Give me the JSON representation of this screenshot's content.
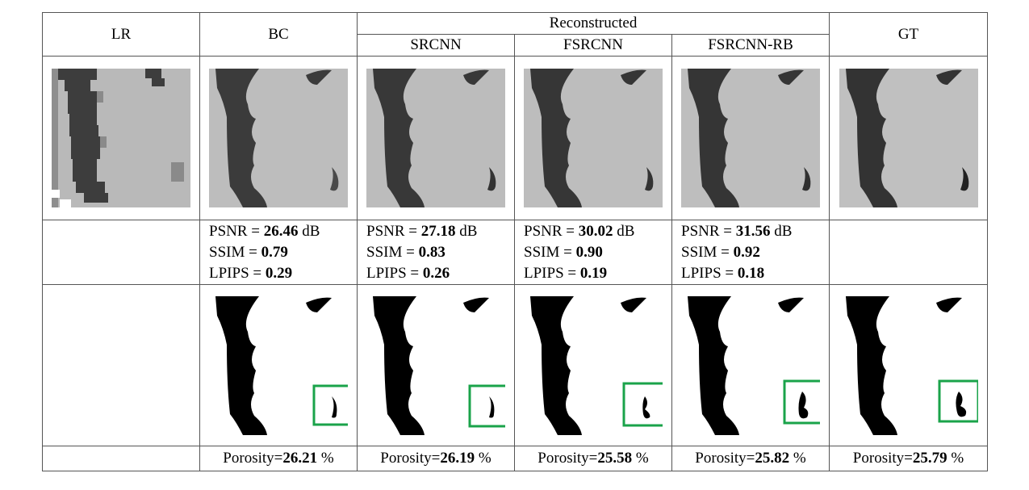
{
  "header": {
    "lr": "LR",
    "bc": "BC",
    "group": "Reconstructed",
    "srcnn": "SRCNN",
    "fsrcnn": "FSRCNN",
    "fsrcnn_rb": "FSRCNN-RB",
    "gt": "GT"
  },
  "metrics": [
    {
      "psnr_prefix": "PSNR = ",
      "psnr": "26.46",
      "psnr_unit": " dB",
      "ssim_prefix": "SSIM = ",
      "ssim": "0.79",
      "lpips_prefix": "LPIPS = ",
      "lpips": "0.29"
    },
    {
      "psnr_prefix": "PSNR = ",
      "psnr": "27.18",
      "psnr_unit": " dB",
      "ssim_prefix": "SSIM = ",
      "ssim": "0.83",
      "lpips_prefix": "LPIPS = ",
      "lpips": "0.26"
    },
    {
      "psnr_prefix": "PSNR = ",
      "psnr": "30.02",
      "psnr_unit": " dB",
      "ssim_prefix": "SSIM = ",
      "ssim": "0.90",
      "lpips_prefix": "LPIPS = ",
      "lpips": "0.19"
    },
    {
      "psnr_prefix": "PSNR = ",
      "psnr": "31.56",
      "psnr_unit": " dB",
      "ssim_prefix": "SSIM = ",
      "ssim": "0.92",
      "lpips_prefix": "LPIPS = ",
      "lpips": "0.18"
    }
  ],
  "porosity": [
    {
      "label": "Porosity=",
      "value": "26.21",
      "unit": " %"
    },
    {
      "label": "Porosity=",
      "value": "26.19",
      "unit": " %"
    },
    {
      "label": "Porosity=",
      "value": "25.58",
      "unit": " %"
    },
    {
      "label": "Porosity=",
      "value": "25.82",
      "unit": " %"
    },
    {
      "label": "Porosity=",
      "value": "25.79",
      "unit": " %"
    }
  ],
  "colors": {
    "pore_dark": "#3a3a3a",
    "matrix_grey": "#bdbdbd",
    "highlight_box": "#1aa34a"
  }
}
